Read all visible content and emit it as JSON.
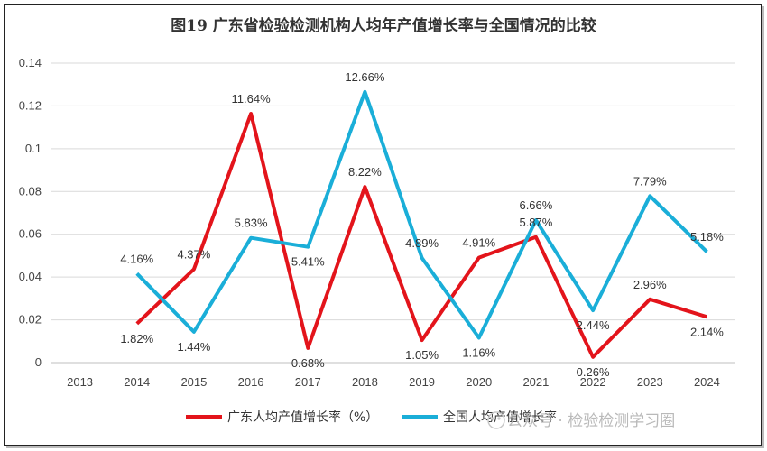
{
  "chart_data": {
    "type": "line",
    "title": "图19  广东省检验检测机构人均年产值增长率与全国情况的比较",
    "categories": [
      "2013",
      "2014",
      "2015",
      "2016",
      "2017",
      "2018",
      "2019",
      "2020",
      "2021",
      "2022",
      "2023",
      "2024"
    ],
    "ylim": [
      0,
      0.14
    ],
    "yticks": [
      0,
      0.02,
      0.04,
      0.06,
      0.08,
      0.1,
      0.12,
      0.14
    ],
    "ytick_labels": [
      "0",
      "0.02",
      "0.04",
      "0.06",
      "0.08",
      "0.1",
      "0.12",
      "0.14"
    ],
    "grid": true,
    "legend_position": "bottom",
    "series": [
      {
        "name": "广东人均产值增长率（%）",
        "color": "#e3141b",
        "values": [
          null,
          0.0182,
          0.0437,
          0.1164,
          0.0068,
          0.0822,
          0.0105,
          0.0491,
          0.0587,
          0.0026,
          0.0296,
          0.0214
        ],
        "labels": [
          null,
          "1.82%",
          "4.37%",
          "11.64%",
          "0.68%",
          "8.22%",
          "1.05%",
          "4.91%",
          "5.87%",
          "0.26%",
          "2.96%",
          "2.14%"
        ]
      },
      {
        "name": "全国人均产值增长率",
        "color": "#1aaed8",
        "values": [
          null,
          0.0416,
          0.0144,
          0.0583,
          0.0541,
          0.1266,
          0.0489,
          0.0116,
          0.0666,
          0.0244,
          0.0779,
          0.0518
        ],
        "labels": [
          null,
          "4.16%",
          "1.44%",
          "5.83%",
          "5.41%",
          "12.66%",
          "4.89%",
          "1.16%",
          "6.66%",
          "2.44%",
          "7.79%",
          "5.18%"
        ]
      }
    ]
  },
  "watermark": "公众号 · 检验检测学习圈"
}
